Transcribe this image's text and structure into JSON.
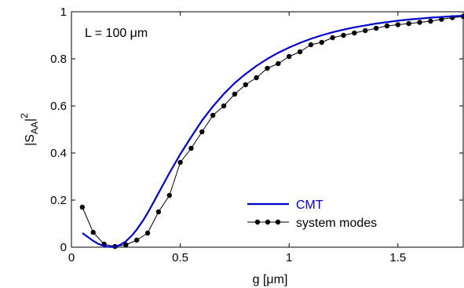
{
  "chart_data": {
    "type": "line",
    "title": "",
    "annotation": "L = 100 μm",
    "xlabel": "g [μm]",
    "ylabel": "|S_AA|^2",
    "ylabel_parts": {
      "base": "|S",
      "sub": "AA",
      "post": "|",
      "sup": "2"
    },
    "xlim": [
      0,
      1.8
    ],
    "ylim": [
      0,
      1
    ],
    "xticks": [
      0,
      0.5,
      1,
      1.5
    ],
    "xtick_labels": [
      "0",
      "0.5",
      "1",
      "1.5"
    ],
    "yticks": [
      0,
      0.2,
      0.4,
      0.6,
      0.8,
      1
    ],
    "ytick_labels": [
      "0",
      "0.2",
      "0.4",
      "0.6",
      "0.8",
      "1"
    ],
    "grid": false,
    "legend_position": "lower-right",
    "series": [
      {
        "name": "CMT",
        "color": "#0000cc",
        "style": "line",
        "x": [
          0.05,
          0.08,
          0.1,
          0.12,
          0.14,
          0.16,
          0.18,
          0.2,
          0.22,
          0.25,
          0.28,
          0.3,
          0.33,
          0.35,
          0.38,
          0.4,
          0.45,
          0.5,
          0.55,
          0.6,
          0.65,
          0.7,
          0.75,
          0.8,
          0.85,
          0.9,
          0.95,
          1.0,
          1.05,
          1.1,
          1.15,
          1.2,
          1.25,
          1.3,
          1.35,
          1.4,
          1.45,
          1.5,
          1.55,
          1.6,
          1.65,
          1.7,
          1.75,
          1.8
        ],
        "y": [
          0.06,
          0.04,
          0.027,
          0.016,
          0.008,
          0.003,
          0.001,
          0.002,
          0.008,
          0.025,
          0.052,
          0.075,
          0.115,
          0.145,
          0.195,
          0.23,
          0.315,
          0.395,
          0.468,
          0.538,
          0.598,
          0.651,
          0.697,
          0.736,
          0.77,
          0.8,
          0.826,
          0.848,
          0.868,
          0.885,
          0.9,
          0.913,
          0.924,
          0.934,
          0.942,
          0.95,
          0.956,
          0.962,
          0.967,
          0.971,
          0.975,
          0.978,
          0.981,
          0.983
        ]
      },
      {
        "name": "system modes",
        "color": "#000000",
        "style": "line-marker",
        "x": [
          0.05,
          0.1,
          0.15,
          0.2,
          0.25,
          0.3,
          0.35,
          0.4,
          0.45,
          0.5,
          0.55,
          0.6,
          0.65,
          0.7,
          0.75,
          0.8,
          0.85,
          0.9,
          0.95,
          1.0,
          1.05,
          1.1,
          1.15,
          1.2,
          1.25,
          1.3,
          1.35,
          1.4,
          1.45,
          1.5,
          1.55,
          1.6,
          1.65,
          1.7,
          1.75,
          1.8
        ],
        "y": [
          0.17,
          0.063,
          0.013,
          0.003,
          0.01,
          0.03,
          0.06,
          0.15,
          0.22,
          0.36,
          0.42,
          0.49,
          0.56,
          0.6,
          0.65,
          0.69,
          0.72,
          0.76,
          0.78,
          0.81,
          0.83,
          0.86,
          0.87,
          0.89,
          0.9,
          0.91,
          0.92,
          0.93,
          0.94,
          0.945,
          0.95,
          0.955,
          0.96,
          0.968,
          0.975,
          0.98
        ]
      }
    ]
  }
}
